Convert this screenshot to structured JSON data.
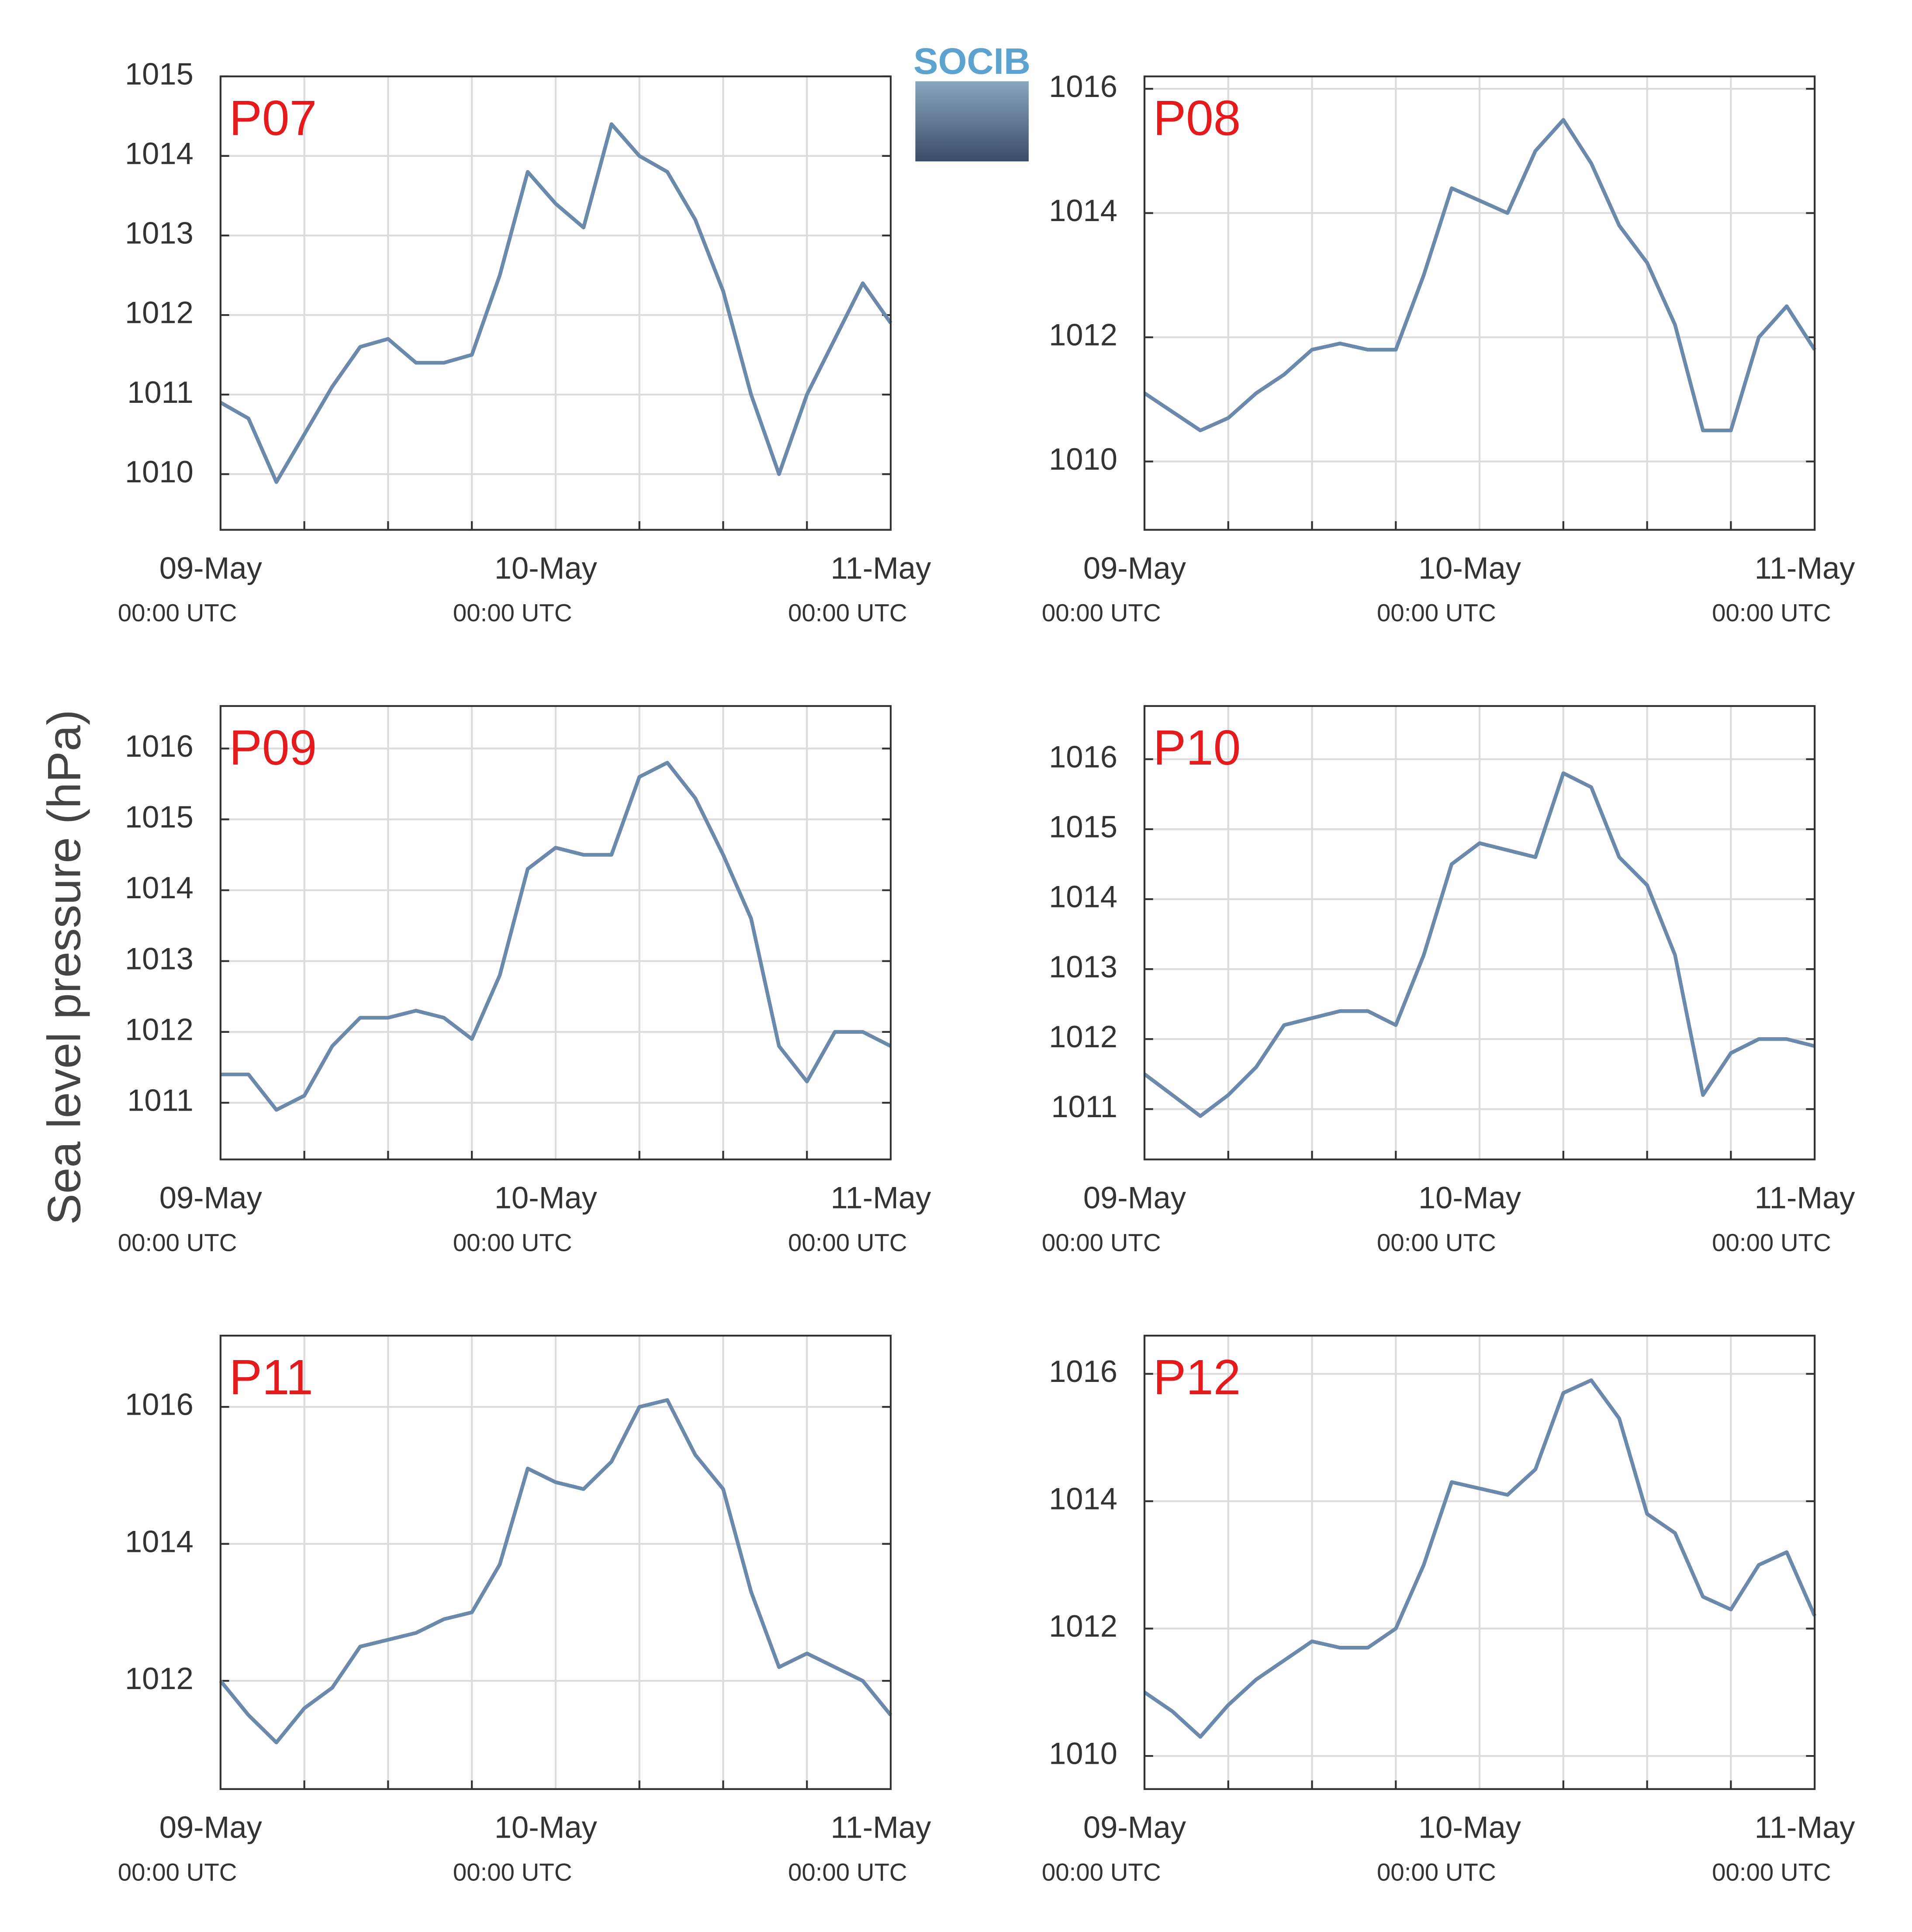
{
  "logo": "SOCIB",
  "ylabel": "Sea level pressure (hPa)",
  "chart_data": [
    {
      "type": "line",
      "title": "P07",
      "x": [
        0,
        2,
        4,
        6,
        8,
        10,
        12,
        14,
        16,
        18,
        20,
        22,
        24,
        26,
        28,
        30,
        32,
        34,
        36,
        38,
        40,
        42,
        44,
        46,
        48
      ],
      "series": [
        {
          "color": "#6a89ab",
          "values": [
            1010.9,
            1010.7,
            1009.9,
            1010.5,
            1011.1,
            1011.6,
            1011.7,
            1011.4,
            1011.4,
            1011.5,
            1012.5,
            1013.8,
            1013.4,
            1013.1,
            1014.4,
            1014.0,
            1013.8,
            1013.2,
            1012.3,
            1011.0,
            1010.0,
            1011.0,
            1011.7,
            1012.4,
            1011.9
          ]
        }
      ],
      "xlim": [
        0,
        48
      ],
      "xticks": [
        {
          "value": 0,
          "label": "09-May",
          "label2": "00:00 UTC"
        },
        {
          "value": 24,
          "label": "10-May",
          "label2": "00:00 UTC"
        },
        {
          "value": 48,
          "label": "11-May",
          "label2": "00:00 UTC"
        }
      ],
      "xminor": [
        6,
        12,
        18,
        30,
        36,
        42
      ],
      "ylim": [
        1009.3,
        1015
      ],
      "yticks": [
        1010,
        1011,
        1012,
        1013,
        1014,
        1015
      ],
      "grid": true
    },
    {
      "type": "line",
      "title": "P08",
      "x": [
        0,
        2,
        4,
        6,
        8,
        10,
        12,
        14,
        16,
        18,
        20,
        22,
        24,
        26,
        28,
        30,
        32,
        34,
        36,
        38,
        40,
        42,
        44,
        46,
        48
      ],
      "series": [
        {
          "color": "#6a89ab",
          "values": [
            1011.1,
            1010.8,
            1010.5,
            1010.7,
            1011.1,
            1011.4,
            1011.8,
            1011.9,
            1011.8,
            1011.8,
            1013.0,
            1014.4,
            1014.2,
            1014.0,
            1015.0,
            1015.5,
            1014.8,
            1013.8,
            1013.2,
            1012.2,
            1010.5,
            1010.5,
            1012.0,
            1012.5,
            1011.8
          ]
        }
      ],
      "xlim": [
        0,
        48
      ],
      "xticks": [
        {
          "value": 0,
          "label": "09-May",
          "label2": "00:00 UTC"
        },
        {
          "value": 24,
          "label": "10-May",
          "label2": "00:00 UTC"
        },
        {
          "value": 48,
          "label": "11-May",
          "label2": "00:00 UTC"
        }
      ],
      "xminor": [
        6,
        12,
        18,
        30,
        36,
        42
      ],
      "ylim": [
        1008.9,
        1016.2
      ],
      "yticks": [
        1010,
        1012,
        1014,
        1016
      ],
      "grid": true
    },
    {
      "type": "line",
      "title": "P09",
      "x": [
        0,
        2,
        4,
        6,
        8,
        10,
        12,
        14,
        16,
        18,
        20,
        22,
        24,
        26,
        28,
        30,
        32,
        34,
        36,
        38,
        40,
        42,
        44,
        46,
        48
      ],
      "series": [
        {
          "color": "#6a89ab",
          "values": [
            1011.4,
            1011.4,
            1010.9,
            1011.1,
            1011.8,
            1012.2,
            1012.2,
            1012.3,
            1012.2,
            1011.9,
            1012.8,
            1014.3,
            1014.6,
            1014.5,
            1014.5,
            1015.6,
            1015.8,
            1015.3,
            1014.5,
            1013.6,
            1011.8,
            1011.3,
            1012.0,
            1012.0,
            1011.8
          ]
        }
      ],
      "xlim": [
        0,
        48
      ],
      "xticks": [
        {
          "value": 0,
          "label": "09-May",
          "label2": "00:00 UTC"
        },
        {
          "value": 24,
          "label": "10-May",
          "label2": "00:00 UTC"
        },
        {
          "value": 48,
          "label": "11-May",
          "label2": "00:00 UTC"
        }
      ],
      "xminor": [
        6,
        12,
        18,
        30,
        36,
        42
      ],
      "ylim": [
        1010.2,
        1016.6
      ],
      "yticks": [
        1011,
        1012,
        1013,
        1014,
        1015,
        1016
      ],
      "grid": true
    },
    {
      "type": "line",
      "title": "P10",
      "x": [
        0,
        2,
        4,
        6,
        8,
        10,
        12,
        14,
        16,
        18,
        20,
        22,
        24,
        26,
        28,
        30,
        32,
        34,
        36,
        38,
        40,
        42,
        44,
        46,
        48
      ],
      "series": [
        {
          "color": "#6a89ab",
          "values": [
            1011.5,
            1011.2,
            1010.9,
            1011.2,
            1011.6,
            1012.2,
            1012.3,
            1012.4,
            1012.4,
            1012.2,
            1013.2,
            1014.5,
            1014.8,
            1014.7,
            1014.6,
            1015.8,
            1015.6,
            1014.6,
            1014.2,
            1013.2,
            1011.2,
            1011.8,
            1012.0,
            1012.0,
            1011.9
          ]
        }
      ],
      "xlim": [
        0,
        48
      ],
      "xticks": [
        {
          "value": 0,
          "label": "09-May",
          "label2": "00:00 UTC"
        },
        {
          "value": 24,
          "label": "10-May",
          "label2": "00:00 UTC"
        },
        {
          "value": 48,
          "label": "11-May",
          "label2": "00:00 UTC"
        }
      ],
      "xminor": [
        6,
        12,
        18,
        30,
        36,
        42
      ],
      "ylim": [
        1010.28,
        1016.76
      ],
      "yticks": [
        1011,
        1012,
        1013,
        1014,
        1015,
        1016
      ],
      "grid": true
    },
    {
      "type": "line",
      "title": "P11",
      "x": [
        0,
        2,
        4,
        6,
        8,
        10,
        12,
        14,
        16,
        18,
        20,
        22,
        24,
        26,
        28,
        30,
        32,
        34,
        36,
        38,
        40,
        42,
        44,
        46,
        48
      ],
      "series": [
        {
          "color": "#6a89ab",
          "values": [
            1012.0,
            1011.5,
            1011.1,
            1011.6,
            1011.9,
            1012.5,
            1012.6,
            1012.7,
            1012.9,
            1013.0,
            1013.7,
            1015.1,
            1014.9,
            1014.8,
            1015.2,
            1016.0,
            1016.1,
            1015.3,
            1014.8,
            1013.3,
            1012.2,
            1012.4,
            1012.2,
            1012.0,
            1011.5
          ]
        }
      ],
      "xlim": [
        0,
        48
      ],
      "xticks": [
        {
          "value": 0,
          "label": "09-May",
          "label2": "00:00 UTC"
        },
        {
          "value": 24,
          "label": "10-May",
          "label2": "00:00 UTC"
        },
        {
          "value": 48,
          "label": "11-May",
          "label2": "00:00 UTC"
        }
      ],
      "xminor": [
        6,
        12,
        18,
        30,
        36,
        42
      ],
      "ylim": [
        1010.42,
        1017.04
      ],
      "yticks": [
        1012,
        1014,
        1016
      ],
      "grid": true
    },
    {
      "type": "line",
      "title": "P12",
      "x": [
        0,
        2,
        4,
        6,
        8,
        10,
        12,
        14,
        16,
        18,
        20,
        22,
        24,
        26,
        28,
        30,
        32,
        34,
        36,
        38,
        40,
        42,
        44,
        46,
        48
      ],
      "series": [
        {
          "color": "#6a89ab",
          "values": [
            1011.0,
            1010.7,
            1010.3,
            1010.8,
            1011.2,
            1011.5,
            1011.8,
            1011.7,
            1011.7,
            1012.0,
            1013.0,
            1014.3,
            1014.2,
            1014.1,
            1014.5,
            1015.7,
            1015.9,
            1015.3,
            1013.8,
            1013.5,
            1012.5,
            1012.3,
            1013.0,
            1013.2,
            1012.2
          ]
        }
      ],
      "xlim": [
        0,
        48
      ],
      "xticks": [
        {
          "value": 0,
          "label": "09-May",
          "label2": "00:00 UTC"
        },
        {
          "value": 24,
          "label": "10-May",
          "label2": "00:00 UTC"
        },
        {
          "value": 48,
          "label": "11-May",
          "label2": "00:00 UTC"
        }
      ],
      "xminor": [
        6,
        12,
        18,
        30,
        36,
        42
      ],
      "ylim": [
        1009.48,
        1016.6
      ],
      "yticks": [
        1010,
        1012,
        1014,
        1016
      ],
      "grid": true
    }
  ]
}
